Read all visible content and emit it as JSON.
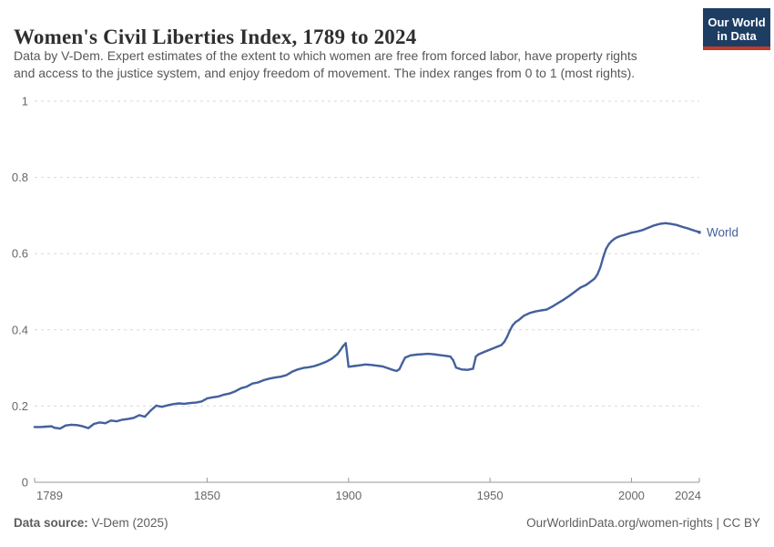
{
  "header": {
    "title": "Women's Civil Liberties Index, 1789 to 2024",
    "subtitle_line1": "Data by V-Dem. Expert estimates of the extent to which women are free from forced labor, have property rights",
    "subtitle_line2": "and access to the justice system, and enjoy freedom of movement. The index ranges from 0 to 1 (most rights).",
    "logo": {
      "line1": "Our World",
      "line2": "in Data",
      "bg_color": "#1d3d63",
      "accent_color": "#c5392d"
    }
  },
  "chart_data": {
    "type": "line",
    "title": "Women's Civil Liberties Index, 1789 to 2024",
    "xlabel": "",
    "ylabel": "",
    "xlim": [
      1789,
      2024
    ],
    "ylim": [
      0,
      1
    ],
    "xticks": [
      1789,
      1850,
      1900,
      1950,
      2000,
      2024
    ],
    "yticks": [
      0,
      0.2,
      0.4,
      0.6,
      0.8,
      1
    ],
    "grid": "horizontal-dashed",
    "legend_position": "end-of-line-label",
    "colors": {
      "line": "#44619d",
      "grid": "#d9d9d9",
      "axis": "#999999",
      "tick_label": "#676767"
    },
    "series": [
      {
        "name": "World",
        "color": "#44619d",
        "points": [
          [
            1789,
            0.145
          ],
          [
            1791,
            0.145
          ],
          [
            1793,
            0.146
          ],
          [
            1795,
            0.147
          ],
          [
            1796,
            0.143
          ],
          [
            1798,
            0.141
          ],
          [
            1800,
            0.149
          ],
          [
            1802,
            0.151
          ],
          [
            1804,
            0.15
          ],
          [
            1806,
            0.147
          ],
          [
            1808,
            0.142
          ],
          [
            1810,
            0.153
          ],
          [
            1812,
            0.157
          ],
          [
            1814,
            0.155
          ],
          [
            1816,
            0.162
          ],
          [
            1818,
            0.16
          ],
          [
            1820,
            0.164
          ],
          [
            1822,
            0.166
          ],
          [
            1824,
            0.169
          ],
          [
            1826,
            0.176
          ],
          [
            1828,
            0.172
          ],
          [
            1830,
            0.188
          ],
          [
            1832,
            0.201
          ],
          [
            1834,
            0.198
          ],
          [
            1836,
            0.202
          ],
          [
            1838,
            0.205
          ],
          [
            1840,
            0.207
          ],
          [
            1842,
            0.206
          ],
          [
            1844,
            0.208
          ],
          [
            1846,
            0.209
          ],
          [
            1848,
            0.212
          ],
          [
            1850,
            0.22
          ],
          [
            1852,
            0.223
          ],
          [
            1854,
            0.225
          ],
          [
            1856,
            0.23
          ],
          [
            1858,
            0.233
          ],
          [
            1860,
            0.239
          ],
          [
            1862,
            0.247
          ],
          [
            1864,
            0.251
          ],
          [
            1866,
            0.259
          ],
          [
            1868,
            0.262
          ],
          [
            1870,
            0.268
          ],
          [
            1872,
            0.272
          ],
          [
            1874,
            0.275
          ],
          [
            1876,
            0.277
          ],
          [
            1878,
            0.281
          ],
          [
            1880,
            0.29
          ],
          [
            1882,
            0.296
          ],
          [
            1884,
            0.3
          ],
          [
            1886,
            0.302
          ],
          [
            1888,
            0.305
          ],
          [
            1890,
            0.31
          ],
          [
            1892,
            0.316
          ],
          [
            1894,
            0.324
          ],
          [
            1896,
            0.336
          ],
          [
            1897,
            0.346
          ],
          [
            1898,
            0.357
          ],
          [
            1899,
            0.365
          ],
          [
            1900,
            0.303
          ],
          [
            1902,
            0.305
          ],
          [
            1904,
            0.307
          ],
          [
            1906,
            0.309
          ],
          [
            1908,
            0.308
          ],
          [
            1910,
            0.306
          ],
          [
            1912,
            0.304
          ],
          [
            1914,
            0.299
          ],
          [
            1916,
            0.294
          ],
          [
            1917,
            0.292
          ],
          [
            1918,
            0.297
          ],
          [
            1919,
            0.313
          ],
          [
            1920,
            0.327
          ],
          [
            1922,
            0.333
          ],
          [
            1924,
            0.335
          ],
          [
            1926,
            0.336
          ],
          [
            1928,
            0.337
          ],
          [
            1930,
            0.336
          ],
          [
            1932,
            0.334
          ],
          [
            1934,
            0.332
          ],
          [
            1936,
            0.33
          ],
          [
            1937,
            0.32
          ],
          [
            1938,
            0.301
          ],
          [
            1940,
            0.296
          ],
          [
            1942,
            0.295
          ],
          [
            1944,
            0.298
          ],
          [
            1945,
            0.33
          ],
          [
            1946,
            0.336
          ],
          [
            1948,
            0.342
          ],
          [
            1950,
            0.348
          ],
          [
            1952,
            0.354
          ],
          [
            1954,
            0.36
          ],
          [
            1955,
            0.368
          ],
          [
            1956,
            0.381
          ],
          [
            1957,
            0.398
          ],
          [
            1958,
            0.412
          ],
          [
            1959,
            0.42
          ],
          [
            1960,
            0.425
          ],
          [
            1962,
            0.437
          ],
          [
            1964,
            0.444
          ],
          [
            1966,
            0.448
          ],
          [
            1968,
            0.451
          ],
          [
            1970,
            0.453
          ],
          [
            1972,
            0.461
          ],
          [
            1974,
            0.47
          ],
          [
            1976,
            0.479
          ],
          [
            1978,
            0.489
          ],
          [
            1980,
            0.5
          ],
          [
            1982,
            0.511
          ],
          [
            1984,
            0.518
          ],
          [
            1986,
            0.529
          ],
          [
            1987,
            0.535
          ],
          [
            1988,
            0.546
          ],
          [
            1989,
            0.564
          ],
          [
            1990,
            0.59
          ],
          [
            1991,
            0.612
          ],
          [
            1992,
            0.625
          ],
          [
            1993,
            0.633
          ],
          [
            1994,
            0.639
          ],
          [
            1995,
            0.643
          ],
          [
            1996,
            0.646
          ],
          [
            1998,
            0.65
          ],
          [
            2000,
            0.655
          ],
          [
            2002,
            0.658
          ],
          [
            2004,
            0.662
          ],
          [
            2006,
            0.668
          ],
          [
            2008,
            0.674
          ],
          [
            2010,
            0.678
          ],
          [
            2012,
            0.68
          ],
          [
            2014,
            0.678
          ],
          [
            2016,
            0.675
          ],
          [
            2018,
            0.67
          ],
          [
            2020,
            0.666
          ],
          [
            2022,
            0.661
          ],
          [
            2024,
            0.656
          ]
        ]
      }
    ]
  },
  "footer": {
    "source_label": "Data source:",
    "source_value": " V-Dem (2025)",
    "credit": "OurWorldinData.org/women-rights | CC BY"
  }
}
